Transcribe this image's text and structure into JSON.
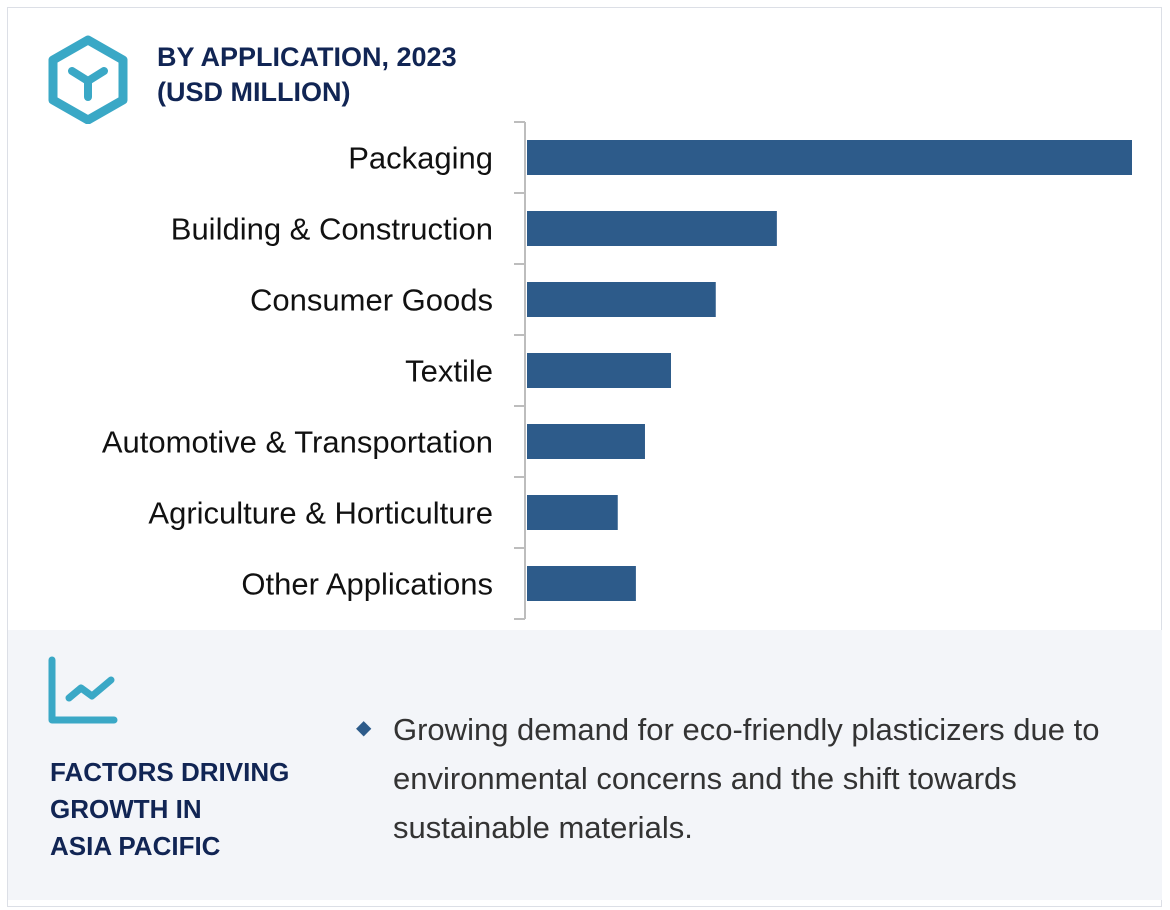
{
  "header": {
    "title_line1": "BY APPLICATION, 2023",
    "title_line2": "(USD MILLION)",
    "icon": "hexagon-cube-icon"
  },
  "chart_data": {
    "type": "bar",
    "orientation": "horizontal",
    "title": "BY APPLICATION, 2023 (USD MILLION)",
    "categories": [
      "Packaging",
      "Building & Construction",
      "Consumer Goods",
      "Textile",
      "Automotive & Transportation",
      "Agriculture & Horticulture",
      "Other Applications"
    ],
    "values": [
      100,
      41.3,
      31.2,
      23.8,
      19.5,
      15.0,
      18.0
    ],
    "values_note_relative": "relative to Packaging = 100; no axis values printed",
    "bar_color": "#2d5b8a",
    "grid": false,
    "xlim": [
      0,
      100
    ]
  },
  "factors": {
    "icon": "trend-chart-icon",
    "heading_lines": [
      "FACTORS DRIVING",
      "GROWTH IN",
      "ASIA PACIFIC"
    ],
    "bullet_icon": "diamond-icon",
    "bullet_text": "Growing demand for eco-friendly plasticizers due to environmental concerns and the shift towards sustainable materials."
  },
  "colors": {
    "accent": "#3aa8c6",
    "title": "#112554",
    "bar": "#2d5b8a",
    "panel_bg": "#f3f5f9"
  }
}
